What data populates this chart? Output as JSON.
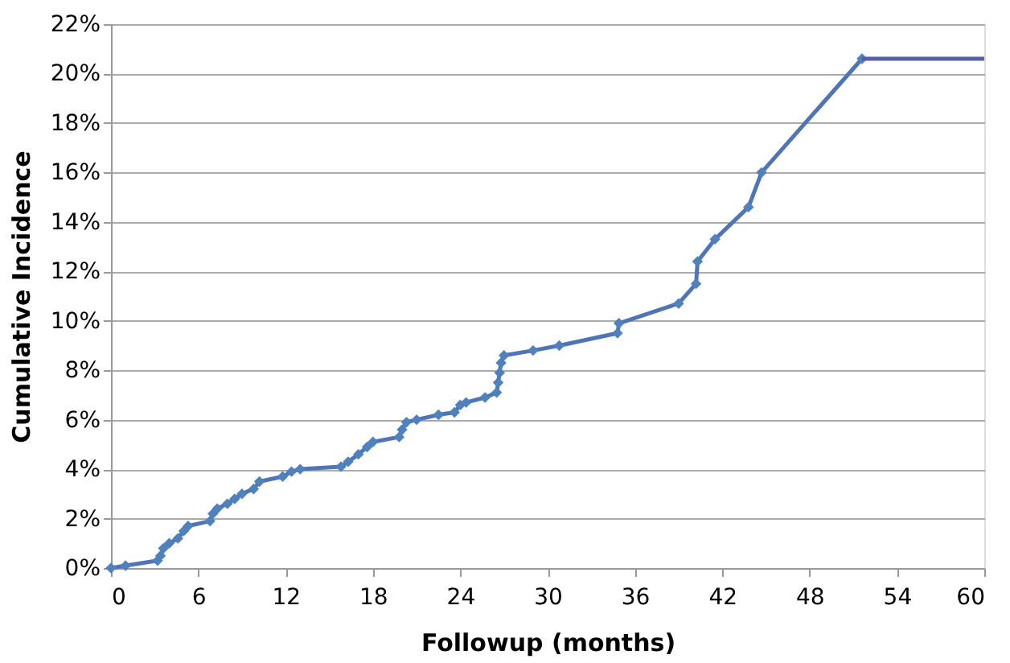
{
  "chart_data": {
    "type": "line",
    "xlabel": "Followup (months)",
    "ylabel": "Cumulative Incidence",
    "xlim": [
      0,
      60
    ],
    "xticks": [
      0,
      6,
      12,
      18,
      24,
      30,
      36,
      42,
      48,
      54,
      60
    ],
    "ylim": [
      0,
      22
    ],
    "yticks": [
      {
        "value": 0,
        "label": "0%"
      },
      {
        "value": 2,
        "label": "2%"
      },
      {
        "value": 4,
        "label": "4%"
      },
      {
        "value": 6,
        "label": "6%"
      },
      {
        "value": 8,
        "label": "8%"
      },
      {
        "value": 10,
        "label": "10%"
      },
      {
        "value": 12,
        "label": "12%"
      },
      {
        "value": 14,
        "label": "14%"
      },
      {
        "value": 16,
        "label": "16%"
      },
      {
        "value": 18,
        "label": "18%"
      },
      {
        "value": 20,
        "label": "20%"
      },
      {
        "value": 22,
        "label": "22%"
      }
    ],
    "grid": "y",
    "line_style": "solid",
    "series": [
      {
        "color": "#4f74b8",
        "marker": "diamond",
        "x": [
          0,
          1,
          3.2,
          3.4,
          3.6,
          4,
          4.6,
          5,
          5.3,
          6.8,
          7,
          7.3,
          8,
          8.5,
          9,
          9.8,
          10.2,
          11.8,
          12.4,
          13,
          15.8,
          16.3,
          17,
          17.6,
          18,
          19.8,
          20,
          20.3,
          21,
          22.5,
          23.6,
          24,
          24.4,
          25.7,
          26.5,
          26.6,
          26.7,
          26.8,
          27,
          29,
          30.8,
          34.8,
          34.9,
          39,
          40.2,
          40.3,
          41.5,
          43.8,
          44.7,
          51.6
        ],
        "values": [
          0,
          0.1,
          0.3,
          0.5,
          0.8,
          1.0,
          1.2,
          1.5,
          1.7,
          1.9,
          2.2,
          2.4,
          2.6,
          2.8,
          3.0,
          3.2,
          3.5,
          3.7,
          3.9,
          4.0,
          4.1,
          4.3,
          4.6,
          4.9,
          5.1,
          5.3,
          5.6,
          5.9,
          6.0,
          6.2,
          6.3,
          6.6,
          6.7,
          6.9,
          7.1,
          7.5,
          7.9,
          8.3,
          8.6,
          8.8,
          9.0,
          9.5,
          9.9,
          10.7,
          11.5,
          12.4,
          13.3,
          14.6,
          16.0,
          20.6
        ]
      },
      {
        "color": "#5a5ea6",
        "marker": "none",
        "x": [
          51.6,
          60
        ],
        "values": [
          20.6,
          20.6
        ]
      }
    ]
  }
}
